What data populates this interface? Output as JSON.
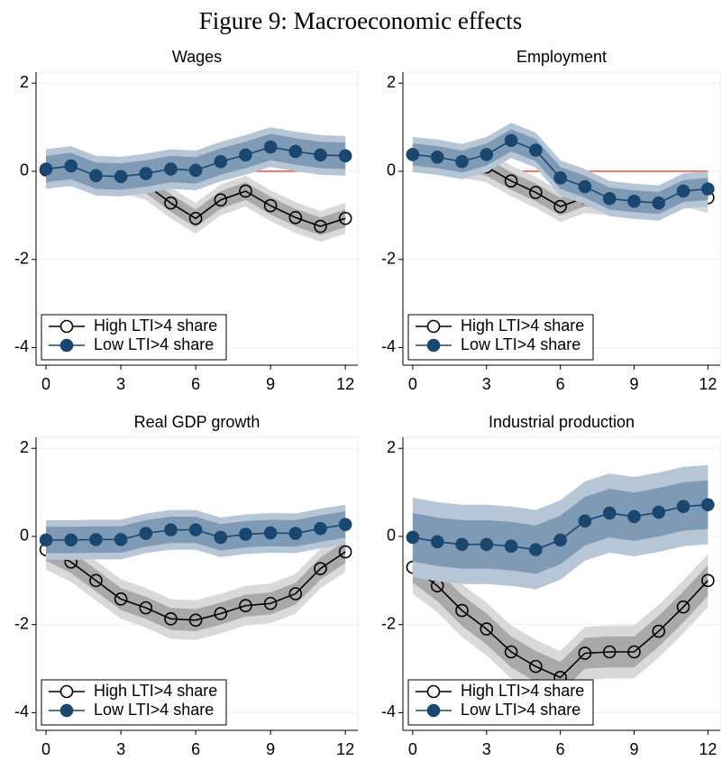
{
  "title": "Figure 9: Macroeconomic effects",
  "chart_data": [
    {
      "type": "line",
      "title": "Wages",
      "x": [
        0,
        1,
        2,
        3,
        4,
        5,
        6,
        7,
        8,
        9,
        10,
        11,
        12
      ],
      "xlim": [
        -0.4,
        12.5
      ],
      "ylim": [
        -4.4,
        2.25
      ],
      "xticks": [
        0,
        3,
        6,
        9,
        12
      ],
      "yticks": [
        -4,
        -2,
        0,
        2
      ],
      "grid": true,
      "legend": "bottom-left",
      "reference_line": {
        "value": 0,
        "color": "#e8412c"
      },
      "series": [
        {
          "name": "High LTI>4 share",
          "color": "#000000",
          "marker": "open",
          "values": [
            0.03,
            0.0,
            -0.1,
            -0.15,
            -0.3,
            -0.72,
            -1.07,
            -0.65,
            -0.45,
            -0.78,
            -1.05,
            -1.25,
            -1.07
          ],
          "bands": [
            {
              "color": "#d9d9d9",
              "lower": [
                -0.32,
                -0.35,
                -0.45,
                -0.5,
                -0.65,
                -1.07,
                -1.42,
                -1.0,
                -0.8,
                -1.13,
                -1.4,
                -1.6,
                -1.42
              ],
              "upper": [
                0.38,
                0.35,
                0.25,
                0.2,
                0.05,
                -0.37,
                -0.72,
                -0.3,
                -0.1,
                -0.43,
                -0.7,
                -0.9,
                -0.72
              ]
            },
            {
              "color": "#a9a9a9",
              "lower": [
                -0.17,
                -0.2,
                -0.3,
                -0.35,
                -0.5,
                -0.92,
                -1.27,
                -0.85,
                -0.65,
                -0.98,
                -1.25,
                -1.45,
                -1.27
              ],
              "upper": [
                0.23,
                0.2,
                0.1,
                0.05,
                -0.1,
                -0.52,
                -0.87,
                -0.45,
                -0.25,
                -0.58,
                -0.85,
                -1.05,
                -0.87
              ]
            }
          ]
        },
        {
          "name": "Low LTI>4 share",
          "color": "#1a476f",
          "marker": "filled",
          "values": [
            0.05,
            0.12,
            -0.1,
            -0.12,
            -0.05,
            0.05,
            0.02,
            0.22,
            0.37,
            0.55,
            0.45,
            0.37,
            0.35
          ],
          "bands": [
            {
              "color": "#b7c6d6",
              "lower": [
                -0.4,
                -0.33,
                -0.55,
                -0.57,
                -0.5,
                -0.4,
                -0.43,
                -0.23,
                -0.08,
                0.1,
                0.0,
                -0.08,
                -0.1
              ],
              "upper": [
                0.5,
                0.57,
                0.35,
                0.33,
                0.4,
                0.5,
                0.47,
                0.67,
                0.82,
                1.0,
                0.9,
                0.82,
                0.8
              ]
            },
            {
              "color": "#7f9ab5",
              "lower": [
                -0.25,
                -0.18,
                -0.4,
                -0.42,
                -0.35,
                -0.25,
                -0.28,
                -0.08,
                0.07,
                0.25,
                0.15,
                0.07,
                0.05
              ],
              "upper": [
                0.35,
                0.42,
                0.2,
                0.18,
                0.25,
                0.35,
                0.32,
                0.52,
                0.67,
                0.85,
                0.75,
                0.67,
                0.65
              ]
            }
          ]
        }
      ]
    },
    {
      "type": "line",
      "title": "Employment",
      "x": [
        0,
        1,
        2,
        3,
        4,
        5,
        6,
        7,
        8,
        9,
        10,
        11,
        12
      ],
      "xlim": [
        -0.4,
        12.5
      ],
      "ylim": [
        -4.4,
        2.25
      ],
      "xticks": [
        0,
        3,
        6,
        9,
        12
      ],
      "yticks": [
        -4,
        -2,
        0,
        2
      ],
      "grid": true,
      "legend": "bottom-left",
      "reference_line": {
        "value": 0,
        "color": "#e8412c"
      },
      "series": [
        {
          "name": "High LTI>4 share",
          "color": "#000000",
          "marker": "open",
          "values": [
            0.38,
            0.3,
            0.2,
            0.1,
            -0.22,
            -0.48,
            -0.8,
            -0.6,
            -0.65,
            -0.65,
            -0.7,
            -0.45,
            -0.6
          ],
          "bands": [
            {
              "color": "#d9d9d9",
              "lower": [
                0.03,
                -0.05,
                -0.15,
                -0.25,
                -0.57,
                -0.83,
                -1.15,
                -0.95,
                -1.0,
                -1.0,
                -1.05,
                -0.8,
                -0.95
              ],
              "upper": [
                0.73,
                0.65,
                0.55,
                0.45,
                0.13,
                -0.13,
                -0.45,
                -0.25,
                -0.3,
                -0.3,
                -0.35,
                -0.1,
                -0.25
              ]
            },
            {
              "color": "#a9a9a9",
              "lower": [
                0.18,
                0.1,
                0.0,
                -0.1,
                -0.42,
                -0.68,
                -1.0,
                -0.8,
                -0.85,
                -0.85,
                -0.9,
                -0.65,
                -0.8
              ],
              "upper": [
                0.58,
                0.5,
                0.4,
                0.3,
                -0.02,
                -0.28,
                -0.6,
                -0.4,
                -0.45,
                -0.45,
                -0.5,
                -0.25,
                -0.4
              ]
            }
          ]
        },
        {
          "name": "Low LTI>4 share",
          "color": "#1a476f",
          "marker": "filled",
          "values": [
            0.38,
            0.32,
            0.22,
            0.38,
            0.7,
            0.48,
            -0.15,
            -0.35,
            -0.62,
            -0.68,
            -0.72,
            -0.45,
            -0.4
          ],
          "bands": [
            {
              "color": "#b7c6d6",
              "lower": [
                -0.02,
                -0.08,
                -0.18,
                -0.02,
                0.3,
                0.08,
                -0.55,
                -0.75,
                -1.02,
                -1.08,
                -1.12,
                -0.85,
                -0.8
              ],
              "upper": [
                0.78,
                0.72,
                0.62,
                0.78,
                1.1,
                0.88,
                0.25,
                0.05,
                -0.22,
                -0.28,
                -0.32,
                -0.05,
                0.0
              ]
            },
            {
              "color": "#7f9ab5",
              "lower": [
                0.13,
                0.07,
                -0.03,
                0.13,
                0.45,
                0.23,
                -0.4,
                -0.6,
                -0.87,
                -0.93,
                -0.97,
                -0.7,
                -0.65
              ],
              "upper": [
                0.63,
                0.57,
                0.47,
                0.63,
                0.95,
                0.73,
                0.1,
                -0.1,
                -0.37,
                -0.43,
                -0.47,
                -0.2,
                -0.15
              ]
            }
          ]
        }
      ]
    },
    {
      "type": "line",
      "title": "Real GDP growth",
      "x": [
        0,
        1,
        2,
        3,
        4,
        5,
        6,
        7,
        8,
        9,
        10,
        11,
        12
      ],
      "xlim": [
        -0.4,
        12.5
      ],
      "ylim": [
        -4.4,
        2.25
      ],
      "xticks": [
        0,
        3,
        6,
        9,
        12
      ],
      "yticks": [
        -4,
        -2,
        0,
        2
      ],
      "grid": true,
      "legend": "bottom-left",
      "reference_line": {
        "value": 0,
        "color": "#e8412c"
      },
      "series": [
        {
          "name": "High LTI>4 share",
          "color": "#000000",
          "marker": "open",
          "values": [
            -0.3,
            -0.58,
            -1.0,
            -1.42,
            -1.62,
            -1.87,
            -1.9,
            -1.75,
            -1.57,
            -1.52,
            -1.3,
            -0.73,
            -0.35
          ],
          "bands": [
            {
              "color": "#d9d9d9",
              "lower": [
                -0.75,
                -1.03,
                -1.45,
                -1.87,
                -2.07,
                -2.32,
                -2.35,
                -2.2,
                -2.02,
                -1.97,
                -1.75,
                -1.18,
                -0.8
              ],
              "upper": [
                0.15,
                -0.13,
                -0.55,
                -0.97,
                -1.17,
                -1.42,
                -1.45,
                -1.3,
                -1.12,
                -1.07,
                -0.85,
                -0.28,
                0.1
              ]
            },
            {
              "color": "#a9a9a9",
              "lower": [
                -0.55,
                -0.83,
                -1.25,
                -1.67,
                -1.87,
                -2.12,
                -2.15,
                -2.0,
                -1.82,
                -1.77,
                -1.55,
                -0.98,
                -0.6
              ],
              "upper": [
                -0.05,
                -0.33,
                -0.75,
                -1.17,
                -1.37,
                -1.62,
                -1.65,
                -1.5,
                -1.32,
                -1.27,
                -1.05,
                -0.48,
                -0.1
              ]
            }
          ]
        },
        {
          "name": "Low LTI>4 share",
          "color": "#1a476f",
          "marker": "filled",
          "values": [
            -0.08,
            -0.08,
            -0.07,
            -0.07,
            0.07,
            0.15,
            0.15,
            -0.02,
            0.05,
            0.08,
            0.07,
            0.18,
            0.27
          ],
          "bands": [
            {
              "color": "#b7c6d6",
              "lower": [
                -0.53,
                -0.53,
                -0.52,
                -0.52,
                -0.38,
                -0.3,
                -0.3,
                -0.47,
                -0.4,
                -0.37,
                -0.38,
                -0.27,
                -0.18
              ],
              "upper": [
                0.37,
                0.37,
                0.38,
                0.38,
                0.52,
                0.6,
                0.6,
                0.43,
                0.5,
                0.53,
                0.52,
                0.63,
                0.72
              ]
            },
            {
              "color": "#7f9ab5",
              "lower": [
                -0.38,
                -0.38,
                -0.37,
                -0.37,
                -0.23,
                -0.15,
                -0.15,
                -0.32,
                -0.25,
                -0.22,
                -0.23,
                -0.12,
                -0.03
              ],
              "upper": [
                0.22,
                0.22,
                0.23,
                0.23,
                0.37,
                0.45,
                0.45,
                0.28,
                0.35,
                0.38,
                0.37,
                0.48,
                0.57
              ]
            }
          ]
        }
      ]
    },
    {
      "type": "line",
      "title": "Industrial production",
      "x": [
        0,
        1,
        2,
        3,
        4,
        5,
        6,
        7,
        8,
        9,
        10,
        11,
        12
      ],
      "xlim": [
        -0.4,
        12.5
      ],
      "ylim": [
        -4.4,
        2.25
      ],
      "xticks": [
        0,
        3,
        6,
        9,
        12
      ],
      "yticks": [
        -4,
        -2,
        0,
        2
      ],
      "grid": true,
      "legend": "bottom-left",
      "reference_line": {
        "value": 0,
        "color": "#e8412c"
      },
      "series": [
        {
          "name": "High LTI>4 share",
          "color": "#000000",
          "marker": "open",
          "values": [
            -0.7,
            -1.12,
            -1.68,
            -2.1,
            -2.62,
            -2.95,
            -3.2,
            -2.65,
            -2.62,
            -2.62,
            -2.15,
            -1.6,
            -1.0
          ],
          "bands": [
            {
              "color": "#d9d9d9",
              "lower": [
                -1.3,
                -1.72,
                -2.28,
                -2.7,
                -3.22,
                -3.55,
                -3.8,
                -3.25,
                -3.22,
                -3.22,
                -2.75,
                -2.2,
                -1.6
              ],
              "upper": [
                -0.1,
                -0.52,
                -1.08,
                -1.5,
                -2.02,
                -2.35,
                -2.6,
                -2.05,
                -2.02,
                -2.02,
                -1.55,
                -1.0,
                -0.4
              ]
            },
            {
              "color": "#a9a9a9",
              "lower": [
                -1.05,
                -1.47,
                -2.03,
                -2.45,
                -2.97,
                -3.3,
                -3.55,
                -3.0,
                -2.97,
                -2.97,
                -2.5,
                -1.95,
                -1.35
              ],
              "upper": [
                -0.35,
                -0.77,
                -1.33,
                -1.75,
                -2.27,
                -2.6,
                -2.85,
                -2.3,
                -2.27,
                -2.27,
                -1.8,
                -1.25,
                -0.65
              ]
            }
          ]
        },
        {
          "name": "Low LTI>4 share",
          "color": "#1a476f",
          "marker": "filled",
          "values": [
            -0.02,
            -0.12,
            -0.18,
            -0.18,
            -0.22,
            -0.3,
            -0.08,
            0.35,
            0.53,
            0.45,
            0.55,
            0.68,
            0.72
          ],
          "bands": [
            {
              "color": "#b7c6d6",
              "lower": [
                -0.92,
                -1.02,
                -1.08,
                -1.08,
                -1.12,
                -1.2,
                -0.98,
                -0.55,
                -0.37,
                -0.45,
                -0.35,
                -0.22,
                -0.18
              ],
              "upper": [
                0.88,
                0.78,
                0.72,
                0.72,
                0.68,
                0.6,
                0.82,
                1.25,
                1.43,
                1.35,
                1.45,
                1.58,
                1.62
              ]
            },
            {
              "color": "#7f9ab5",
              "lower": [
                -0.57,
                -0.67,
                -0.73,
                -0.73,
                -0.77,
                -0.85,
                -0.63,
                -0.2,
                -0.02,
                -0.1,
                0.0,
                0.13,
                0.17
              ],
              "upper": [
                0.53,
                0.43,
                0.37,
                0.37,
                0.33,
                0.25,
                0.47,
                0.9,
                1.08,
                1.0,
                1.1,
                1.23,
                1.27
              ]
            }
          ]
        }
      ]
    }
  ]
}
